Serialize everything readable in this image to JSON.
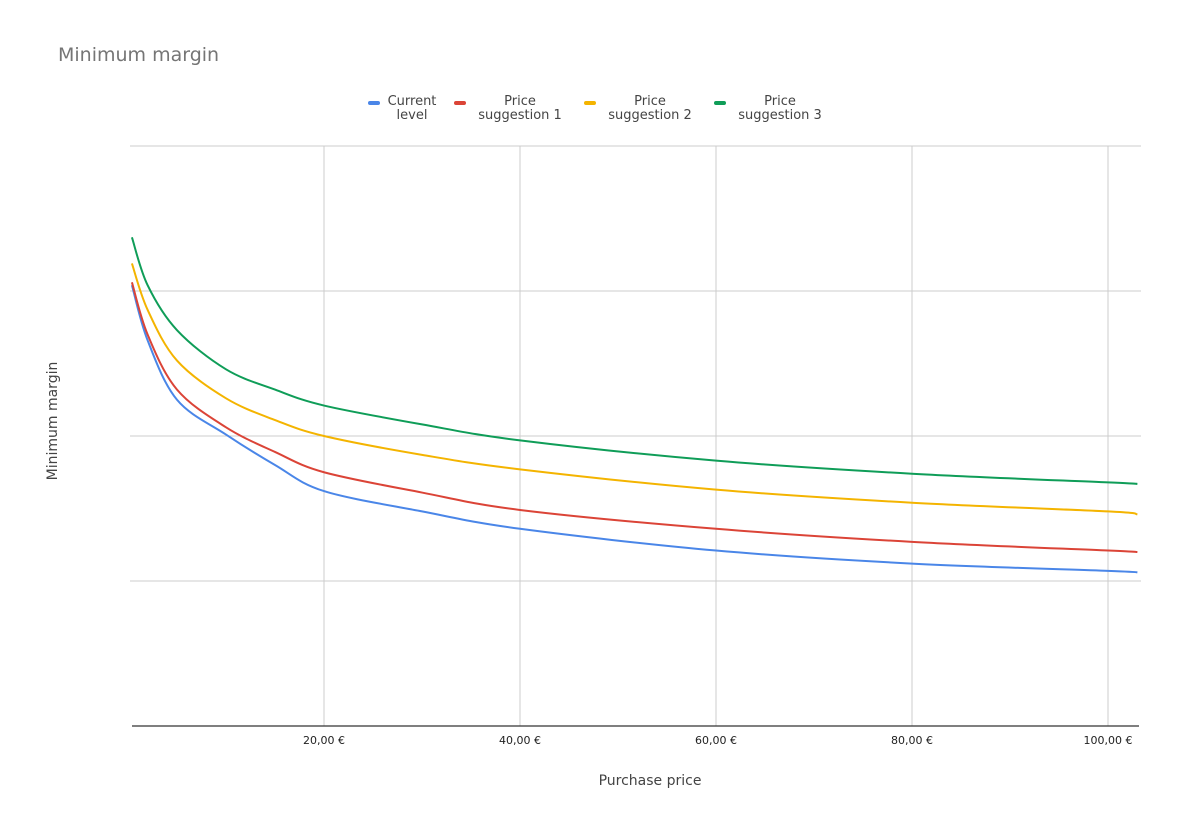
{
  "chart_data": {
    "type": "line",
    "title": "Minimum margin",
    "xlabel": "Purchase price",
    "ylabel": "Minimum margin",
    "xlim": [
      0,
      103.2
    ],
    "ylim": [
      0,
      4
    ],
    "grid": true,
    "legend_position": "top",
    "x_ticks": [
      20,
      40,
      60,
      80,
      100
    ],
    "x_tick_labels": [
      "20,00 €",
      "40,00 €",
      "60,00 €",
      "80,00 €",
      "100,00 €"
    ],
    "y_gridlines": [
      1,
      2,
      3,
      4
    ],
    "x": [
      0.4,
      2,
      5,
      10,
      15,
      20,
      30,
      40,
      60,
      80,
      100,
      103
    ],
    "series": [
      {
        "name": "Current level",
        "color": "#4a86e8",
        "values": [
          3.04,
          2.66,
          2.25,
          2.01,
          1.8,
          1.62,
          1.48,
          1.36,
          1.21,
          1.12,
          1.07,
          1.06
        ]
      },
      {
        "name": "Price suggestion 1",
        "color": "#db4437",
        "values": [
          3.06,
          2.7,
          2.32,
          2.06,
          1.89,
          1.75,
          1.61,
          1.49,
          1.36,
          1.27,
          1.21,
          1.2
        ]
      },
      {
        "name": "Price suggestion 2",
        "color": "#f4b400",
        "values": [
          3.19,
          2.87,
          2.52,
          2.26,
          2.11,
          2.0,
          1.87,
          1.77,
          1.63,
          1.54,
          1.48,
          1.46
        ]
      },
      {
        "name": "Price suggestion 3",
        "color": "#0f9d58",
        "values": [
          3.37,
          3.04,
          2.73,
          2.46,
          2.32,
          2.21,
          2.08,
          1.97,
          1.83,
          1.74,
          1.68,
          1.67
        ]
      }
    ]
  }
}
